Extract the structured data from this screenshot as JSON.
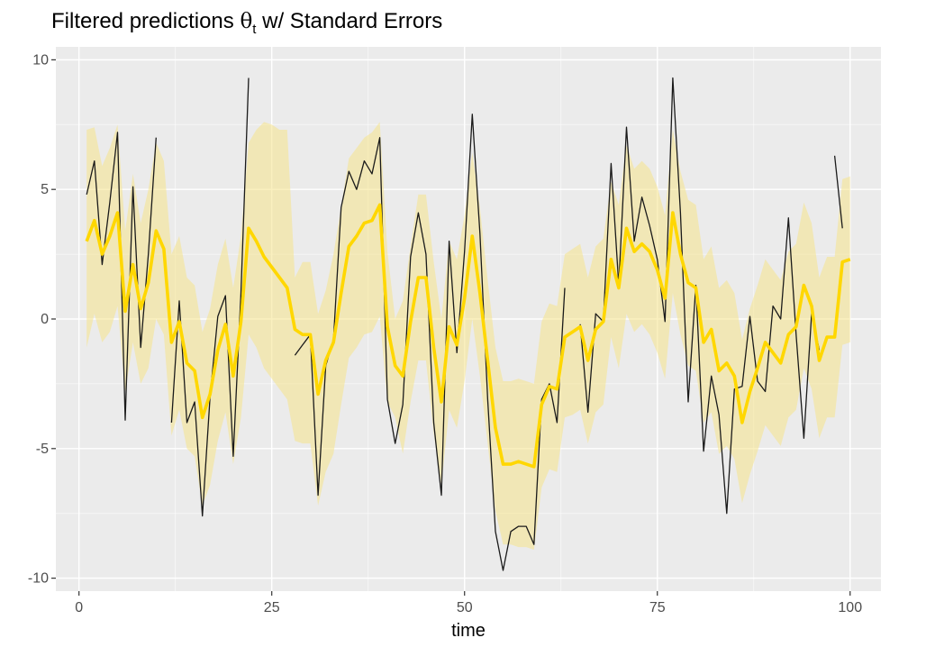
{
  "chart_data": {
    "type": "line",
    "title": {
      "prefix": "Filtered predictions ",
      "symbol": "θ",
      "subscript": "t",
      "suffix": " w/ Standard Errors"
    },
    "xlabel": "time",
    "ylabel": "",
    "xlim": [
      -3,
      104
    ],
    "ylim": [
      -10.5,
      10.5
    ],
    "x_ticks": [
      0,
      25,
      50,
      75,
      100
    ],
    "x_tick_labels": [
      "0",
      "25",
      "50",
      "75",
      "100"
    ],
    "y_ticks": [
      -10,
      -5,
      0,
      5,
      10
    ],
    "y_tick_labels": [
      "-10",
      "-5",
      "0",
      "5",
      "10"
    ],
    "grid": true,
    "background": "#ebebeb",
    "legend": "none",
    "series": [
      {
        "role": "observed",
        "color": "#1a1a1a",
        "x": [
          1,
          2,
          3,
          4,
          5,
          6,
          7,
          8,
          9,
          10,
          11,
          12,
          13,
          14,
          15,
          16,
          17,
          18,
          19,
          20,
          21,
          22,
          23,
          24,
          25,
          26,
          27,
          28,
          29,
          30,
          31,
          32,
          33,
          34,
          35,
          36,
          37,
          38,
          39,
          40,
          41,
          42,
          43,
          44,
          45,
          46,
          47,
          48,
          49,
          50,
          51,
          52,
          53,
          54,
          55,
          56,
          57,
          58,
          59,
          60,
          61,
          62,
          63,
          64,
          65,
          66,
          67,
          68,
          69,
          70,
          71,
          72,
          73,
          74,
          75,
          76,
          77,
          78,
          79,
          80,
          81,
          82,
          83,
          84,
          85,
          86,
          87,
          88,
          89,
          90,
          91,
          92,
          93,
          94,
          95,
          96,
          97,
          98,
          99,
          100
        ],
        "y": [
          4.8,
          6.1,
          2.1,
          4.5,
          7.2,
          -3.9,
          5.1,
          -1.1,
          2.5,
          7.0,
          null,
          -4.0,
          0.7,
          -4.0,
          -3.2,
          -7.6,
          -3.0,
          0.1,
          0.9,
          -5.3,
          1.0,
          9.3,
          null,
          null,
          null,
          null,
          null,
          -1.4,
          -1.0,
          -0.6,
          -6.8,
          -1.8,
          -0.8,
          4.3,
          5.7,
          5.0,
          6.1,
          5.6,
          7.0,
          -3.1,
          -4.8,
          -3.3,
          2.4,
          4.1,
          2.5,
          -4.0,
          -6.8,
          3.0,
          -1.3,
          2.6,
          7.9,
          3.3,
          -3.1,
          -8.2,
          -9.7,
          -8.2,
          -8.0,
          -8.0,
          -8.7,
          -3.1,
          -2.5,
          -4.0,
          1.2,
          null,
          -0.2,
          -3.6,
          0.2,
          -0.1,
          6.0,
          1.3,
          7.4,
          3.0,
          4.7,
          3.6,
          2.3,
          -0.1,
          9.3,
          4.1,
          -3.2,
          1.3,
          -5.1,
          -2.2,
          -3.7,
          -7.5,
          -2.7,
          -2.6,
          0.1,
          -2.4,
          -2.8,
          0.5,
          0.0,
          3.9,
          -0.6,
          -4.6,
          0.2,
          -1.2,
          null,
          6.3,
          3.5,
          null
        ]
      },
      {
        "role": "filtered",
        "color": "#ffd700",
        "x": [
          1,
          2,
          3,
          4,
          5,
          6,
          7,
          8,
          9,
          10,
          11,
          12,
          13,
          14,
          15,
          16,
          17,
          18,
          19,
          20,
          21,
          22,
          23,
          24,
          25,
          26,
          27,
          28,
          29,
          30,
          31,
          32,
          33,
          34,
          35,
          36,
          37,
          38,
          39,
          40,
          41,
          42,
          43,
          44,
          45,
          46,
          47,
          48,
          49,
          50,
          51,
          52,
          53,
          54,
          55,
          56,
          57,
          58,
          59,
          60,
          61,
          62,
          63,
          64,
          65,
          66,
          67,
          68,
          69,
          70,
          71,
          72,
          73,
          74,
          75,
          76,
          77,
          78,
          79,
          80,
          81,
          82,
          83,
          84,
          85,
          86,
          87,
          88,
          89,
          90,
          91,
          92,
          93,
          94,
          95,
          96,
          97,
          98,
          99,
          100
        ],
        "y": [
          3.0,
          3.8,
          2.5,
          3.2,
          4.1,
          0.3,
          2.1,
          0.4,
          1.4,
          3.4,
          2.7,
          -0.9,
          -0.1,
          -1.7,
          -2.0,
          -3.8,
          -2.9,
          -1.2,
          -0.2,
          -2.2,
          -0.1,
          3.5,
          3.0,
          2.4,
          2.0,
          1.6,
          1.2,
          -0.4,
          -0.6,
          -0.6,
          -2.9,
          -1.6,
          -0.9,
          1.0,
          2.8,
          3.2,
          3.7,
          3.8,
          4.4,
          -0.3,
          -1.8,
          -2.2,
          -0.1,
          1.6,
          1.6,
          -1.1,
          -3.2,
          -0.3,
          -1.0,
          0.8,
          3.2,
          1.0,
          -1.6,
          -4.2,
          -5.6,
          -5.6,
          -5.5,
          -5.6,
          -5.7,
          -3.3,
          -2.6,
          -2.7,
          -0.7,
          -0.5,
          -0.3,
          -1.6,
          -0.4,
          -0.1,
          2.3,
          1.2,
          3.5,
          2.6,
          2.9,
          2.6,
          1.9,
          0.8,
          4.1,
          2.5,
          1.4,
          1.2,
          -0.9,
          -0.4,
          -2.0,
          -1.7,
          -2.2,
          -4.0,
          -2.8,
          -1.9,
          -0.9,
          -1.3,
          -1.7,
          -0.6,
          -0.3,
          1.3,
          0.5,
          -1.6,
          -0.7,
          -0.7,
          2.2,
          2.3
        ]
      }
    ],
    "ribbon": {
      "color": "#f5e38a",
      "opacity": 0.55,
      "lower": [
        -1.1,
        0.2,
        -0.9,
        -0.5,
        0.5,
        -2.8,
        -0.9,
        -2.5,
        -1.9,
        0.0,
        -0.6,
        -4.5,
        -3.5,
        -5.0,
        -5.3,
        -7.2,
        -6.4,
        -4.7,
        -3.6,
        -5.6,
        -3.8,
        -0.6,
        -1.1,
        -1.9,
        -2.3,
        -2.7,
        -3.1,
        -4.7,
        -4.8,
        -4.8,
        -7.2,
        -5.9,
        -5.2,
        -3.3,
        -1.5,
        -1.1,
        -0.6,
        -0.5,
        0.1,
        -3.2,
        -3.8,
        -5.2,
        -3.2,
        -1.6,
        -1.6,
        -4.4,
        -6.4,
        -3.5,
        -4.2,
        -2.4,
        0.0,
        -2.2,
        -4.8,
        -7.4,
        -8.7,
        -8.7,
        -8.8,
        -8.8,
        -8.9,
        -6.5,
        -5.8,
        -5.9,
        -3.8,
        -3.7,
        -3.5,
        -4.8,
        -3.6,
        -3.3,
        -0.7,
        -1.9,
        0.2,
        -0.5,
        -0.2,
        -0.6,
        -1.3,
        -2.3,
        1.0,
        -0.6,
        -1.8,
        -2.0,
        -4.0,
        -3.6,
        -5.2,
        -4.9,
        -5.4,
        -7.1,
        -6.0,
        -5.1,
        -4.1,
        -4.5,
        -4.9,
        -3.8,
        -3.5,
        -1.9,
        -2.7,
        -4.6,
        -3.8,
        -3.8,
        -1.0,
        -0.9
      ],
      "upper": [
        7.3,
        7.4,
        5.9,
        6.6,
        7.5,
        3.4,
        5.6,
        3.7,
        5.0,
        6.8,
        6.1,
        2.5,
        3.2,
        1.6,
        1.3,
        -0.5,
        0.4,
        2.1,
        3.1,
        1.2,
        3.2,
        6.8,
        7.3,
        7.6,
        7.5,
        7.3,
        7.3,
        1.6,
        2.2,
        2.2,
        0.2,
        1.1,
        2.5,
        4.3,
        6.2,
        6.6,
        7.0,
        7.2,
        7.6,
        2.6,
        0.0,
        0.7,
        2.8,
        4.8,
        4.8,
        2.2,
        0.0,
        3.0,
        2.3,
        4.0,
        6.4,
        4.3,
        1.5,
        -1.1,
        -2.4,
        -2.4,
        -2.3,
        -2.4,
        -2.5,
        -0.1,
        0.6,
        0.5,
        2.5,
        2.7,
        2.9,
        1.6,
        2.8,
        3.1,
        5.3,
        4.4,
        6.7,
        5.8,
        6.1,
        5.8,
        5.1,
        4.0,
        7.3,
        5.7,
        4.6,
        4.4,
        2.3,
        2.8,
        1.2,
        1.5,
        1.0,
        -0.8,
        0.4,
        1.3,
        2.3,
        1.9,
        1.5,
        2.6,
        2.9,
        4.5,
        3.7,
        1.6,
        2.4,
        2.4,
        5.4,
        5.5
      ]
    }
  }
}
